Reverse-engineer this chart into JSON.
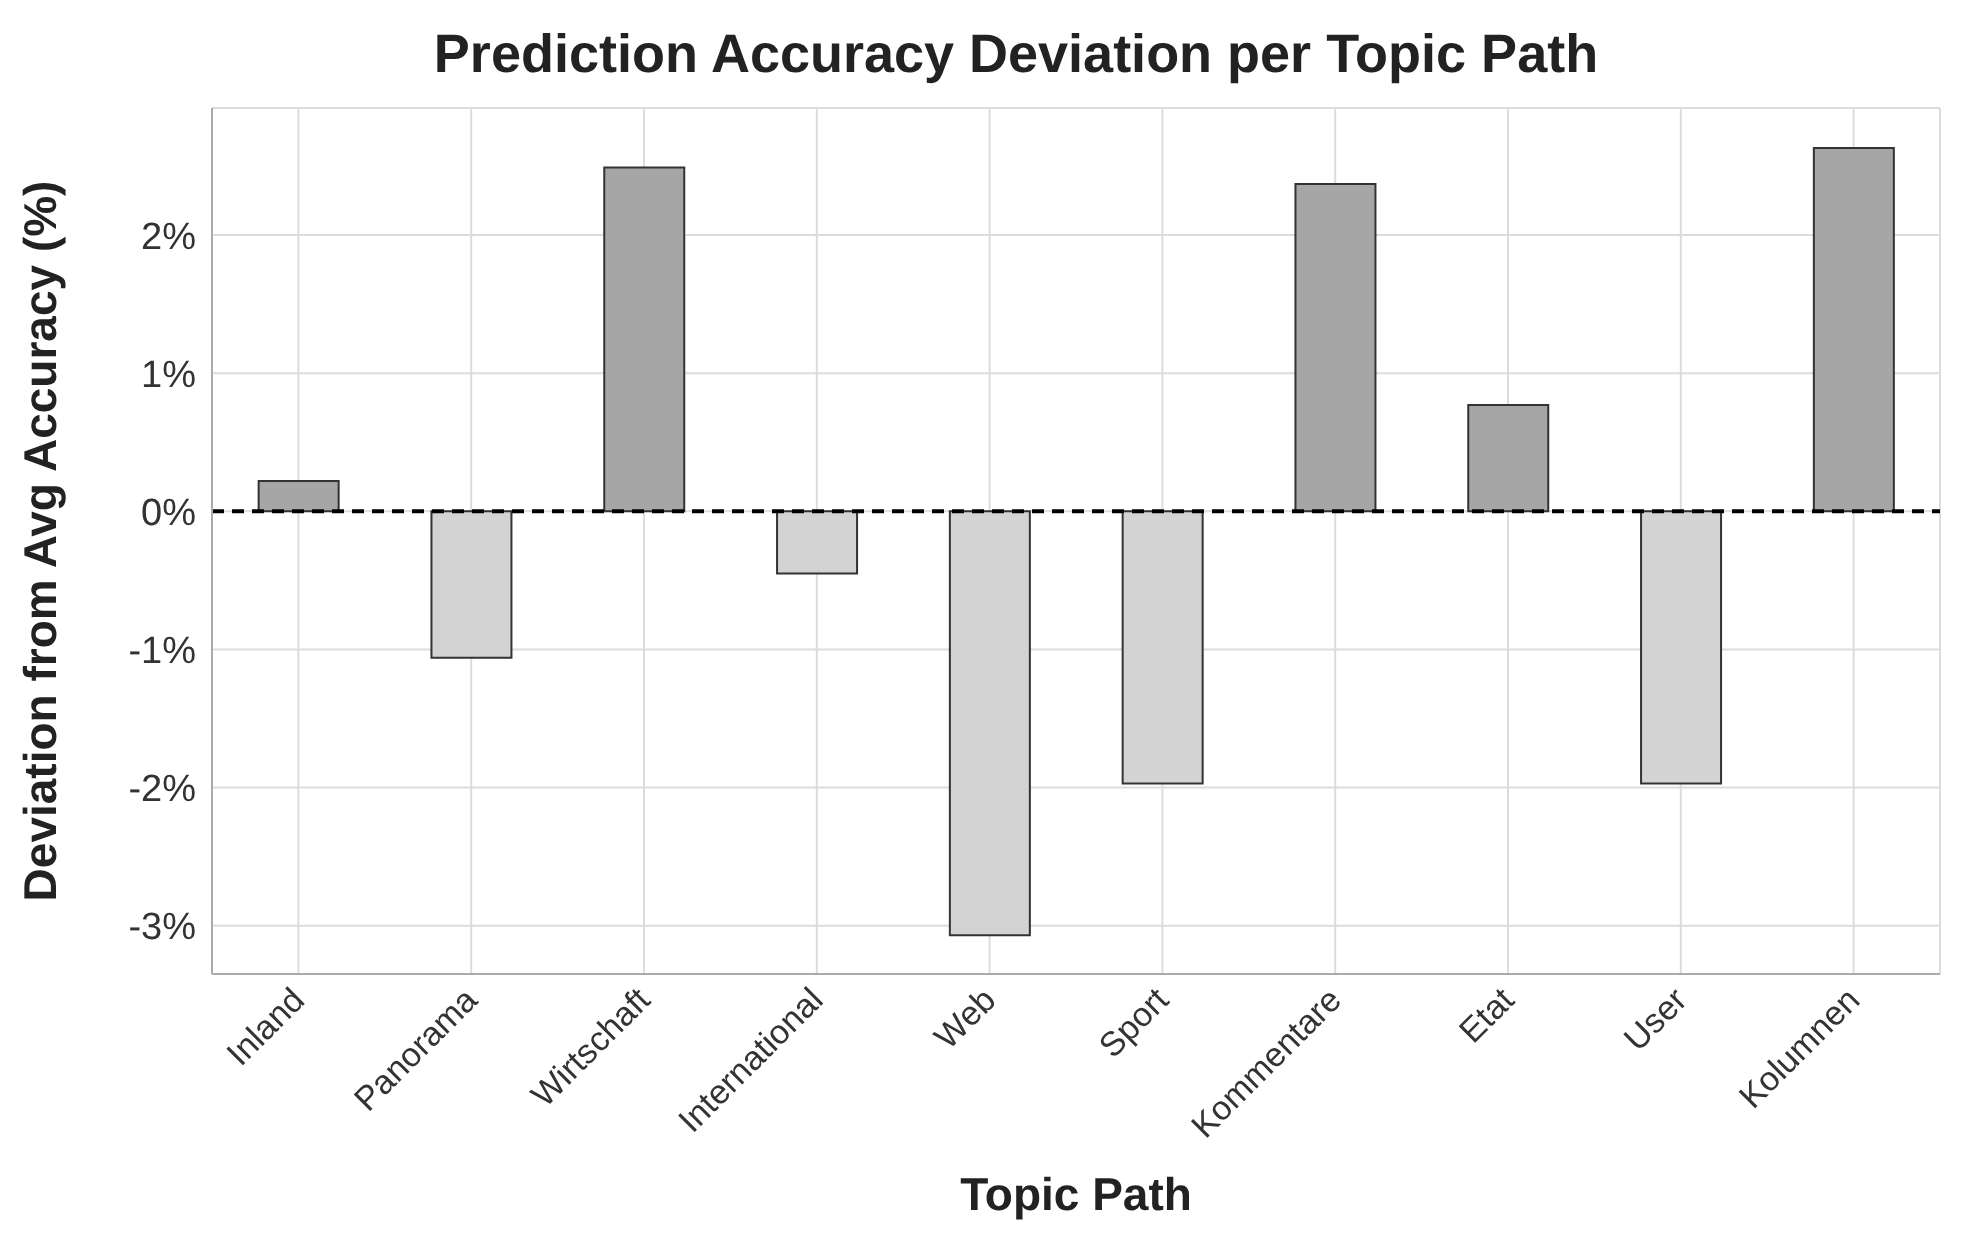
{
  "chart_data": {
    "type": "bar",
    "title": "Prediction Accuracy Deviation per Topic Path",
    "xlabel": "Topic Path",
    "ylabel": "Deviation from Avg Accuracy (%)",
    "categories": [
      "Inland",
      "Panorama",
      "Wirtschaft",
      "International",
      "Web",
      "Sport",
      "Kommentare",
      "Etat",
      "User",
      "Kolumnen"
    ],
    "values": [
      0.22,
      -1.06,
      2.49,
      -0.45,
      -3.07,
      -1.97,
      2.37,
      0.77,
      -1.97,
      2.63
    ],
    "colors": [
      "#a6a6a6",
      "#d3d3d3",
      "#a6a6a6",
      "#d3d3d3",
      "#d3d3d3",
      "#d3d3d3",
      "#a6a6a6",
      "#a6a6a6",
      "#d3d3d3",
      "#a6a6a6"
    ],
    "ylim": [
      -3.35,
      2.92
    ],
    "yticks": [
      {
        "value": -3,
        "label": "-3%"
      },
      {
        "value": -2,
        "label": "-2%"
      },
      {
        "value": -1,
        "label": "-1%"
      },
      {
        "value": 0,
        "label": "0%"
      },
      {
        "value": 1,
        "label": "1%"
      },
      {
        "value": 2,
        "label": "2%"
      }
    ],
    "grid": true,
    "ref_lines": [
      {
        "axis": "y",
        "value": 0,
        "color": "#000000",
        "line_style": "dashed"
      }
    ]
  }
}
